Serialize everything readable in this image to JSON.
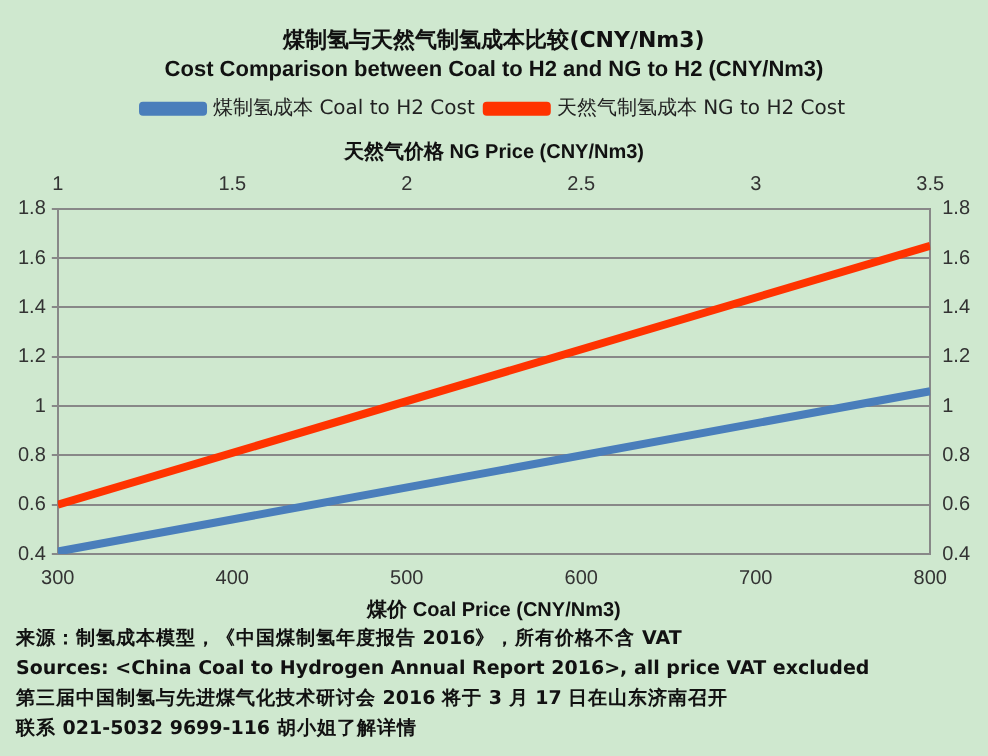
{
  "chart_data": {
    "type": "line",
    "title": "煤制氢与天然气制氢成本比较(CNY/Nm3)",
    "subtitle": "Cost Comparison between Coal to H2 and NG to H2 (CNY/Nm3)",
    "xlabel": "煤价 Coal Price (CNY/Nm3)",
    "x2label": "天然气价格 NG Price (CNY/Nm3)",
    "x": [
      300,
      800
    ],
    "series": [
      {
        "name": "煤制氢成本 Coal to H2 Cost",
        "color": "#4a7ebb",
        "values": [
          0.41,
          1.06
        ]
      },
      {
        "name": "天然气制氢成本 NG to H2 Cost",
        "color": "#ff3300",
        "values": [
          0.6,
          1.65
        ]
      }
    ],
    "xlim": [
      300,
      800
    ],
    "xticks": [
      300,
      400,
      500,
      600,
      700,
      800
    ],
    "x2lim": [
      1,
      3.5
    ],
    "x2ticks": [
      1,
      1.5,
      2,
      2.5,
      3,
      3.5
    ],
    "ylim": [
      0.4,
      1.8
    ],
    "yticks": [
      0.4,
      0.6,
      0.8,
      1,
      1.2,
      1.4,
      1.6,
      1.8
    ],
    "y2lim": [
      0.4,
      1.8
    ],
    "y2ticks": [
      0.4,
      0.6,
      0.8,
      1,
      1.2,
      1.4,
      1.6,
      1.8
    ],
    "grid": "y",
    "legend": "top",
    "marker": "none",
    "line_style": "solid",
    "annotations": [
      "来源：制氢成本模型，《中国煤制氢年度报告 2016》，所有价格不含 VAT",
      "Sources: <China Coal to Hydrogen Annual Report 2016>, all price VAT excluded",
      "第三届中国制氢与先进煤气化技术研讨会 2016 将于 3 月 17 日在山东济南召开",
      "联系 021-5032 9699-116 胡小姐了解详情"
    ]
  }
}
